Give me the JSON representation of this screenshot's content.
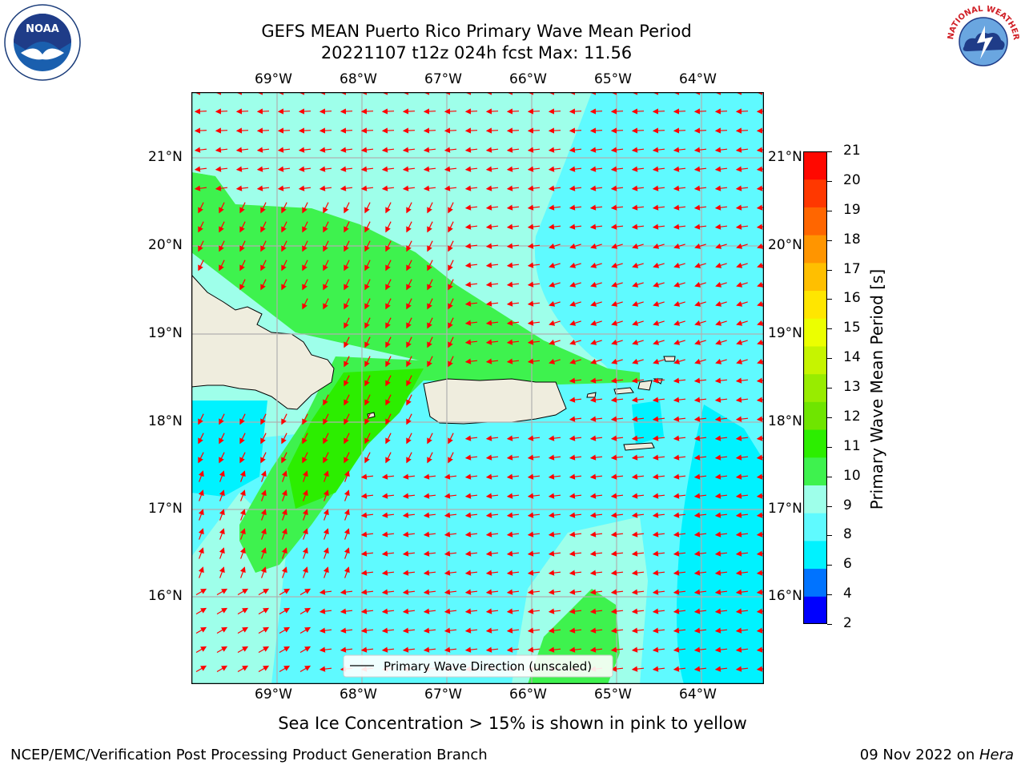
{
  "header": {
    "title_line1": "GEFS MEAN Puerto Rico Primary Wave Mean Period",
    "title_line2": "20221107 t12z 024h fcst   Max: 11.56"
  },
  "logos": {
    "left": {
      "text": "NOAA",
      "icon": "noaa-logo",
      "color": "#1a5fae"
    },
    "right": {
      "text": "NATIONAL WEATHER SERVICE",
      "icon": "nws-logo",
      "color": "#d01f26"
    }
  },
  "map": {
    "lon_labels": [
      "69°W",
      "68°W",
      "67°W",
      "66°W",
      "65°W",
      "64°W"
    ],
    "lat_labels": [
      "21°N",
      "20°N",
      "19°N",
      "18°N",
      "17°N",
      "16°N"
    ],
    "legend_label": "Primary Wave Direction (unscaled)",
    "arrow_color": "#ff0000",
    "land_color": "#efedde"
  },
  "colorbar": {
    "label": "Primary Wave Mean Period [s]",
    "ticks": [
      "2",
      "4",
      "6",
      "8",
      "9",
      "10",
      "11",
      "12",
      "13",
      "14",
      "15",
      "16",
      "17",
      "18",
      "19",
      "20",
      "21"
    ],
    "colors": [
      "#0000ff",
      "#0073ff",
      "#00f2ff",
      "#5ffaff",
      "#9effea",
      "#3ef24e",
      "#2cee00",
      "#6fe500",
      "#98ec00",
      "#c6f400",
      "#ecff00",
      "#ffe600",
      "#ffbf00",
      "#ff9500",
      "#ff6600",
      "#ff3800",
      "#ff0800"
    ]
  },
  "subnote": "Sea Ice Concentration > 15% is shown in pink to yellow",
  "footer": {
    "left": "NCEP/EMC/Verification Post Processing Product Generation Branch",
    "right_date": "09 Nov 2022 on ",
    "right_host": "Hera"
  }
}
